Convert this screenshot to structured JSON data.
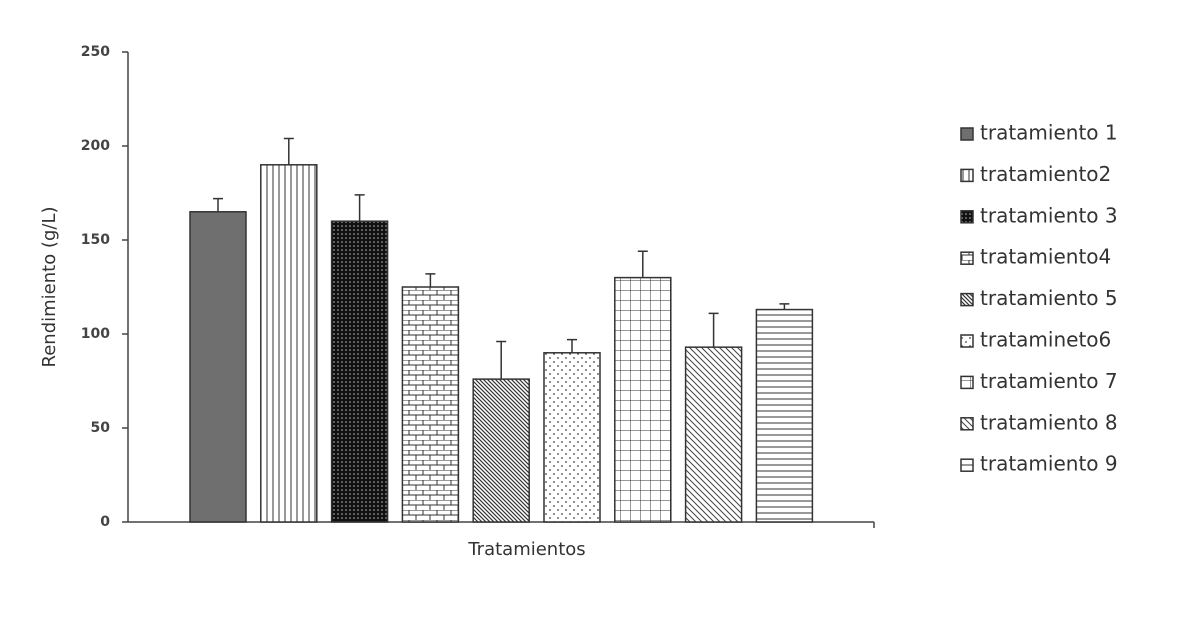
{
  "chart_data": {
    "type": "bar",
    "x_label": "Tratamientos",
    "y_label": "Rendimiento (g/L)",
    "ylim": [
      0,
      250
    ],
    "yticks": [
      0,
      50,
      100,
      150,
      200,
      250
    ],
    "series": [
      {
        "name": "tratamiento 1",
        "pattern": "solid",
        "color": "#6f6f6f",
        "values": [
          165
        ],
        "errors": [
          7
        ]
      },
      {
        "name": "tratamiento2",
        "pattern": "vertical",
        "color": "#333333",
        "values": [
          190
        ],
        "errors": [
          14
        ]
      },
      {
        "name": "tratamiento 3",
        "pattern": "dots-dark",
        "color": "#111111",
        "values": [
          160
        ],
        "errors": [
          14
        ]
      },
      {
        "name": "tratamiento4",
        "pattern": "brick",
        "color": "#333333",
        "values": [
          125
        ],
        "errors": [
          7
        ]
      },
      {
        "name": "tratamiento 5",
        "pattern": "diagonal-dense",
        "color": "#333333",
        "values": [
          76
        ],
        "errors": [
          20
        ]
      },
      {
        "name": "tratamineto6",
        "pattern": "dots",
        "color": "#333333",
        "values": [
          90
        ],
        "errors": [
          7
        ]
      },
      {
        "name": "tratamiento 7",
        "pattern": "grid",
        "color": "#333333",
        "values": [
          130
        ],
        "errors": [
          14
        ]
      },
      {
        "name": "tratamiento 8",
        "pattern": "diagonal",
        "color": "#333333",
        "values": [
          93
        ],
        "errors": [
          18
        ]
      },
      {
        "name": "tratamiento 9",
        "pattern": "horizontal",
        "color": "#333333",
        "values": [
          113
        ],
        "errors": [
          3
        ]
      }
    ]
  }
}
